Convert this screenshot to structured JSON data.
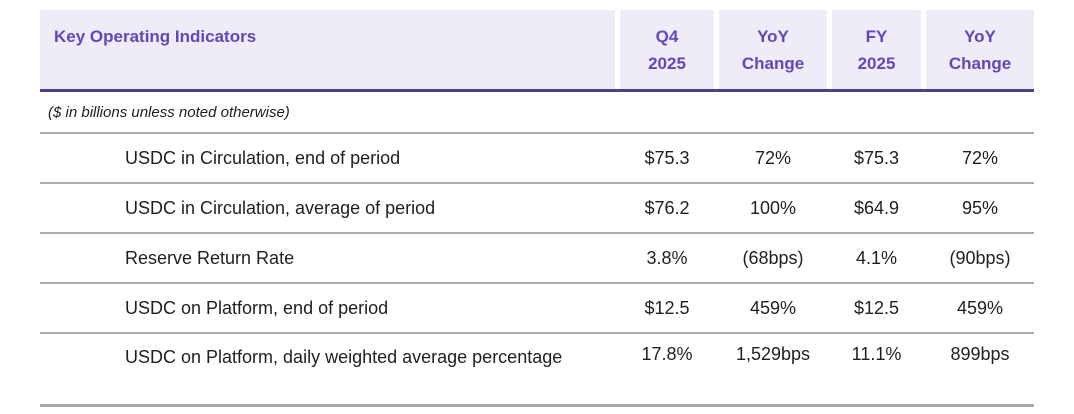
{
  "table": {
    "title": "Key Operating Indicators",
    "columns": [
      "Q4\n2025",
      "YoY\nChange",
      "FY\n2025",
      "YoY\nChange"
    ],
    "note": "($ in billions unless noted otherwise)",
    "rows": [
      {
        "label": "USDC in Circulation, end of period",
        "values": [
          "$75.3",
          "72%",
          "$75.3",
          "72%"
        ]
      },
      {
        "label": "USDC in Circulation, average of period",
        "values": [
          "$76.2",
          "100%",
          "$64.9",
          "95%"
        ]
      },
      {
        "label": "Reserve Return Rate",
        "values": [
          "3.8%",
          "(68bps)",
          "4.1%",
          "(90bps)"
        ]
      },
      {
        "label": "USDC on Platform, end of period",
        "values": [
          "$12.5",
          "459%",
          "$12.5",
          "459%"
        ]
      },
      {
        "label": "USDC on Platform, daily weighted average percentage",
        "values": [
          "17.8%",
          "1,529bps",
          "11.1%",
          "899bps"
        ]
      }
    ],
    "colors": {
      "header_bg": "#efebf8",
      "header_text": "#6247b8",
      "header_border": "#4c4088",
      "divider": "#ababab",
      "bottom_border": "#a8a8a8",
      "body_text": "#1f1f1f"
    }
  }
}
